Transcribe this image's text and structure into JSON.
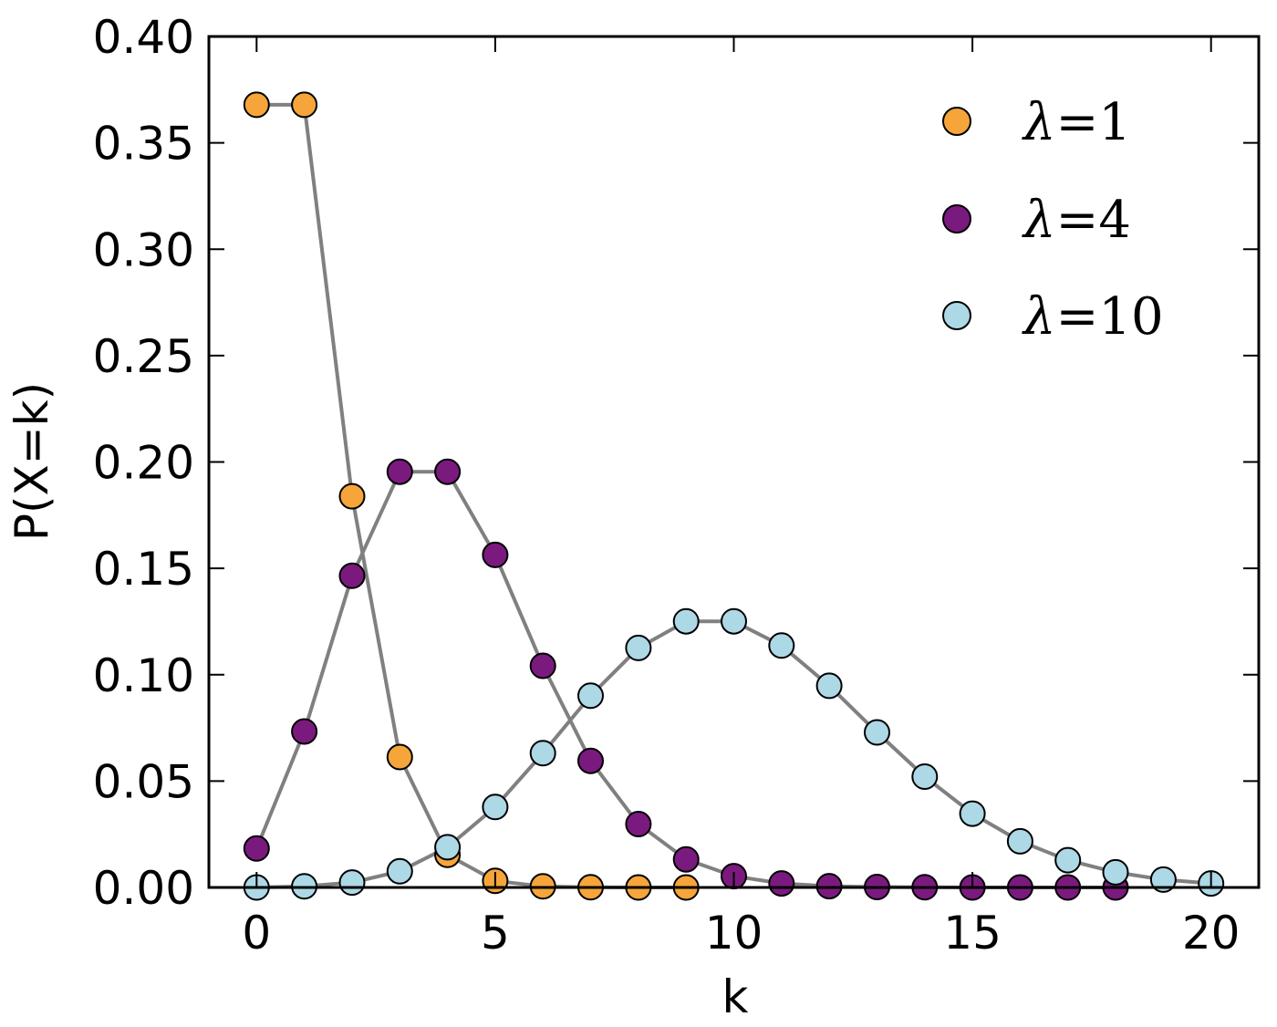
{
  "chart_data": {
    "type": "line",
    "title": "",
    "xlabel": "k",
    "ylabel": "P(X=k)",
    "xlim": [
      -1,
      21
    ],
    "ylim": [
      0,
      0.4
    ],
    "xticks": [
      "0",
      "5",
      "10",
      "15",
      "20"
    ],
    "xtick_values": [
      0,
      5,
      10,
      15,
      20
    ],
    "yticks": [
      "0.00",
      "0.05",
      "0.10",
      "0.15",
      "0.20",
      "0.25",
      "0.30",
      "0.35",
      "0.40"
    ],
    "ytick_values": [
      0,
      0.05,
      0.1,
      0.15,
      0.2,
      0.25,
      0.3,
      0.35,
      0.4
    ],
    "grid": false,
    "legend_position": "top-right",
    "line_color": "#808080",
    "marker_edge_color": "#000000",
    "series": [
      {
        "name": "λ=1",
        "legend_symbol": "λ",
        "legend_rest": "=1",
        "color": "#f5a53a",
        "x": [
          0,
          1,
          2,
          3,
          4,
          5,
          6,
          7,
          8,
          9
        ],
        "values": [
          0.3679,
          0.3679,
          0.1839,
          0.0613,
          0.0153,
          0.0031,
          0.0005,
          0.0001,
          0.0,
          0.0
        ]
      },
      {
        "name": "λ=4",
        "legend_symbol": "λ",
        "legend_rest": "=4",
        "color": "#7b1a7e",
        "x": [
          0,
          1,
          2,
          3,
          4,
          5,
          6,
          7,
          8,
          9,
          10,
          11,
          12,
          13,
          14,
          15,
          16,
          17,
          18
        ],
        "values": [
          0.0183,
          0.0733,
          0.1465,
          0.1954,
          0.1954,
          0.1563,
          0.1042,
          0.0595,
          0.0298,
          0.0132,
          0.0053,
          0.0019,
          0.0006,
          0.0002,
          0.0001,
          0.0,
          0.0,
          0.0,
          0.0
        ]
      },
      {
        "name": "λ=10",
        "legend_symbol": "λ",
        "legend_rest": "=10",
        "color": "#add8e6",
        "x": [
          0,
          1,
          2,
          3,
          4,
          5,
          6,
          7,
          8,
          9,
          10,
          11,
          12,
          13,
          14,
          15,
          16,
          17,
          18,
          19,
          20
        ],
        "values": [
          0.0,
          0.0005,
          0.0023,
          0.0076,
          0.0189,
          0.0378,
          0.0631,
          0.0901,
          0.1126,
          0.1251,
          0.1251,
          0.1137,
          0.0948,
          0.0729,
          0.0521,
          0.0347,
          0.0217,
          0.0128,
          0.0071,
          0.0037,
          0.0019
        ]
      }
    ]
  }
}
